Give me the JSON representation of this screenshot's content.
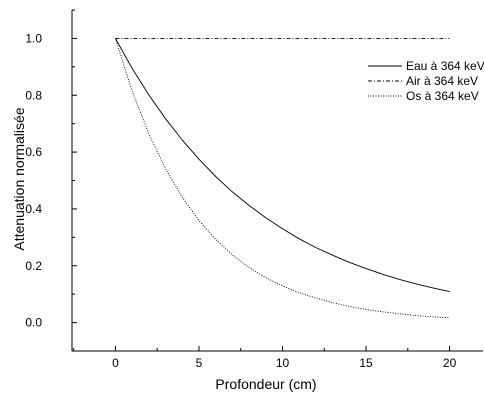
{
  "chart_data": {
    "type": "line",
    "title": "",
    "xlabel": "Profondeur (cm)",
    "ylabel": "Attenuation normalisée",
    "xlim": [
      -2.6,
      22.0
    ],
    "ylim": [
      -0.1,
      1.1
    ],
    "xticks": [
      0,
      5,
      10,
      15,
      20
    ],
    "xtick_labels": [
      "0",
      "5",
      "10",
      "15",
      "20"
    ],
    "yticks": [
      0.0,
      0.2,
      0.4,
      0.6,
      0.8,
      1.0
    ],
    "ytick_labels": [
      "0.0",
      "0.2",
      "0.4",
      "0.6",
      "0.8",
      "1.0"
    ],
    "grid": false,
    "legend_position": "top-right",
    "x": [
      0,
      1,
      2,
      3,
      4,
      5,
      6,
      7,
      8,
      9,
      10,
      11,
      12,
      13,
      14,
      15,
      16,
      17,
      18,
      19,
      20
    ],
    "series": [
      {
        "name": "Eau à 364 keV",
        "style": "solid",
        "values": [
          1.0,
          0.895,
          0.801,
          0.717,
          0.642,
          0.575,
          0.514,
          0.46,
          0.412,
          0.369,
          0.33,
          0.295,
          0.264,
          0.237,
          0.212,
          0.19,
          0.17,
          0.152,
          0.136,
          0.122,
          0.109
        ]
      },
      {
        "name": "Air à 364 keV",
        "style": "dashdot",
        "values": [
          1.0,
          1.0,
          1.0,
          1.0,
          1.0,
          1.0,
          1.0,
          1.0,
          1.0,
          1.0,
          1.0,
          1.0,
          1.0,
          1.0,
          1.0,
          1.0,
          1.0,
          1.0,
          1.0,
          1.0,
          1.0
        ]
      },
      {
        "name": "Os à 364 keV",
        "style": "dotted",
        "values": [
          1.0,
          0.815,
          0.664,
          0.541,
          0.441,
          0.359,
          0.293,
          0.238,
          0.194,
          0.158,
          0.129,
          0.105,
          0.086,
          0.07,
          0.057,
          0.046,
          0.038,
          0.031,
          0.025,
          0.02,
          0.017
        ]
      }
    ]
  }
}
